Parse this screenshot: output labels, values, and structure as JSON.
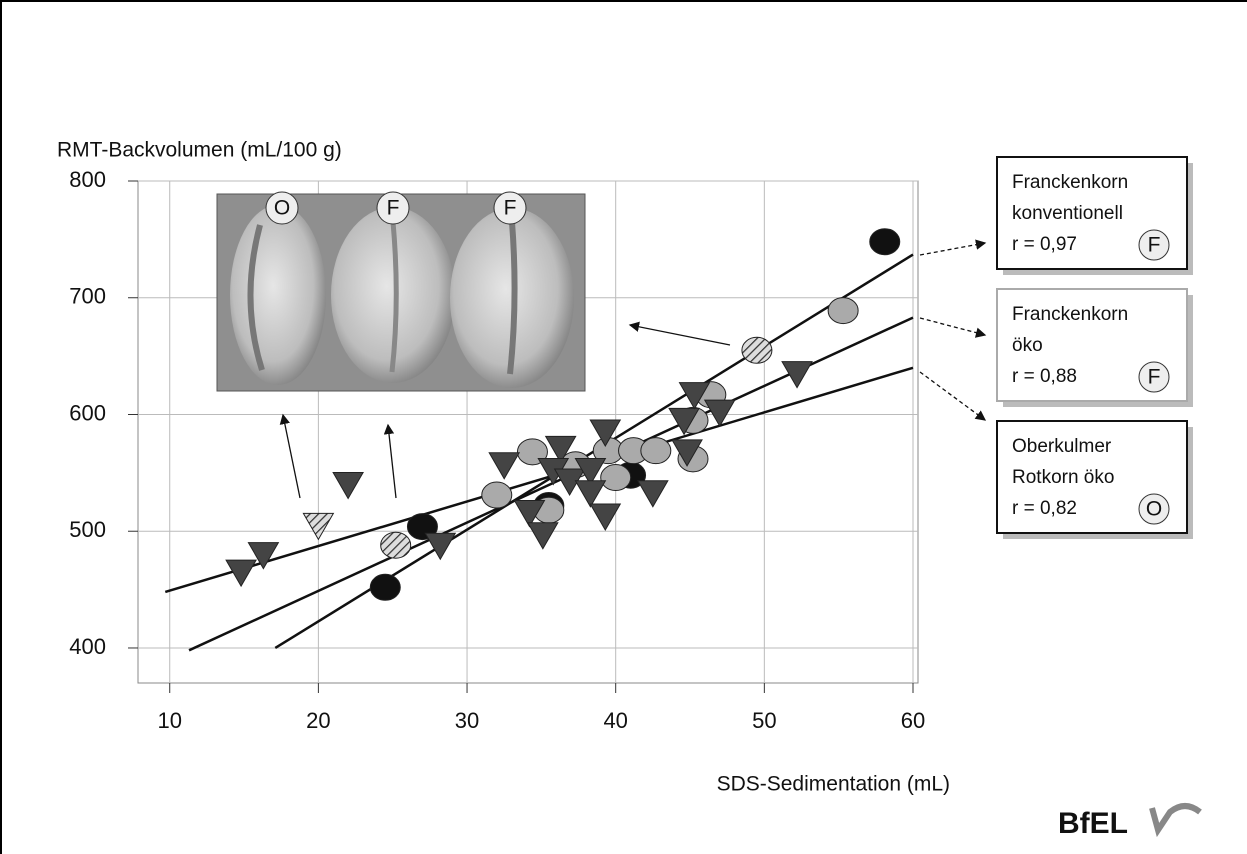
{
  "chart_data": {
    "type": "scatter",
    "y_label": "RMT-Backvolumen (mL/100 g)",
    "x_label": "SDS-Sedimentation (mL)",
    "xlim": [
      8,
      60
    ],
    "ylim": [
      370,
      800
    ],
    "xticks": [
      10,
      20,
      30,
      40,
      50,
      60
    ],
    "yticks": [
      400,
      500,
      600,
      700,
      800
    ],
    "grid": true,
    "photo_labels": [
      "O",
      "F",
      "F"
    ],
    "logo": "BfEL",
    "series": [
      {
        "name_lines": [
          "Franckenkorn",
          "konventionell"
        ],
        "r_label": "r = 0,97",
        "badge": "F",
        "marker": "circle",
        "color": "#111111",
        "x": [
          24.5,
          27.0,
          35.5,
          41.0,
          58.1
        ],
        "y": [
          452,
          504,
          522,
          548,
          748
        ],
        "fit_x": [
          17.1,
          60
        ],
        "fit_y": [
          400,
          737
        ]
      },
      {
        "name_lines": [
          "Franckenkorn",
          "öko"
        ],
        "r_label": "r = 0,88",
        "badge": "F",
        "marker": "circle",
        "color": "#aaaaaa",
        "x": [
          32.0,
          34.4,
          35.5,
          37.3,
          39.5,
          40.0,
          41.2,
          42.7,
          45.2,
          45.2,
          46.4,
          55.3
        ],
        "y": [
          531,
          568,
          518,
          557,
          569,
          546,
          569,
          569,
          562,
          595,
          617,
          689
        ],
        "fit_x": [
          11.3,
          60
        ],
        "fit_y": [
          398,
          683
        ]
      },
      {
        "name_lines": [
          "Oberkulmer",
          "Rotkorn öko"
        ],
        "r_label": "r = 0,82",
        "badge": "O",
        "marker": "triangle",
        "color": "#444444",
        "x": [
          14.8,
          16.3,
          22.0,
          28.2,
          32.5,
          34.2,
          35.1,
          36.3,
          35.8,
          36.9,
          38.3,
          38.3,
          39.3,
          39.3,
          42.5,
          44.8,
          44.6,
          45.3,
          47.0,
          52.2
        ],
        "y": [
          465,
          480,
          540,
          488,
          557,
          516,
          497,
          571,
          552,
          543,
          552,
          533,
          513,
          585,
          533,
          568,
          595,
          617,
          602,
          635
        ],
        "fit_x": [
          9.7,
          60
        ],
        "fit_y": [
          448,
          640
        ]
      },
      {
        "marker": "circle",
        "color": "hatch",
        "x": [
          25.2,
          49.5
        ],
        "y": [
          488,
          655
        ]
      },
      {
        "marker": "triangle",
        "color": "hatch",
        "x": [
          20.0
        ],
        "y": [
          505
        ]
      }
    ]
  }
}
